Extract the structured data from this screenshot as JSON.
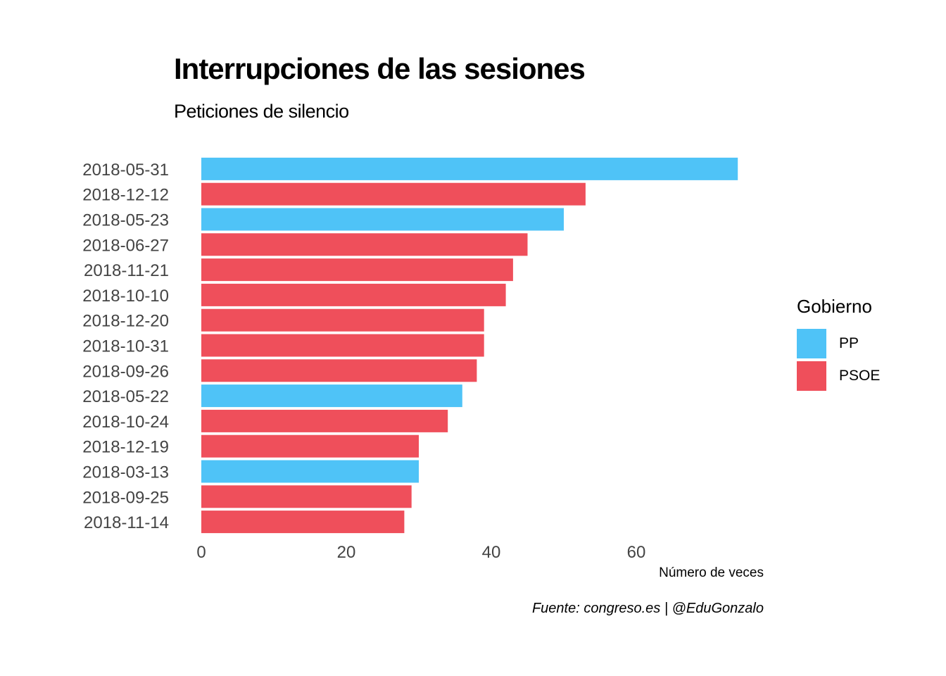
{
  "chart_data": {
    "type": "bar",
    "orientation": "horizontal",
    "title": "Interrupciones de las sesiones",
    "subtitle": "Peticiones de silencio",
    "xlabel": "Número de veces",
    "ylabel": "",
    "caption": "Fuente: congreso.es | @EduGonzalo",
    "xlim": [
      0,
      78
    ],
    "xticks": [
      0,
      20,
      40,
      60
    ],
    "grid": false,
    "legend": {
      "title": "Gobierno",
      "position": "right",
      "entries": [
        {
          "label": "PP",
          "color": "#4FC3F7"
        },
        {
          "label": "PSOE",
          "color": "#EF4F5B"
        }
      ]
    },
    "bars": [
      {
        "category": "2018-05-31",
        "value": 74,
        "group": "PP"
      },
      {
        "category": "2018-12-12",
        "value": 53,
        "group": "PSOE"
      },
      {
        "category": "2018-05-23",
        "value": 50,
        "group": "PP"
      },
      {
        "category": "2018-06-27",
        "value": 45,
        "group": "PSOE"
      },
      {
        "category": "2018-11-21",
        "value": 43,
        "group": "PSOE"
      },
      {
        "category": "2018-10-10",
        "value": 42,
        "group": "PSOE"
      },
      {
        "category": "2018-12-20",
        "value": 39,
        "group": "PSOE"
      },
      {
        "category": "2018-10-31",
        "value": 39,
        "group": "PSOE"
      },
      {
        "category": "2018-09-26",
        "value": 38,
        "group": "PSOE"
      },
      {
        "category": "2018-05-22",
        "value": 36,
        "group": "PP"
      },
      {
        "category": "2018-10-24",
        "value": 34,
        "group": "PSOE"
      },
      {
        "category": "2018-12-19",
        "value": 30,
        "group": "PSOE"
      },
      {
        "category": "2018-03-13",
        "value": 30,
        "group": "PP"
      },
      {
        "category": "2018-09-25",
        "value": 29,
        "group": "PSOE"
      },
      {
        "category": "2018-11-14",
        "value": 28,
        "group": "PSOE"
      }
    ]
  },
  "colors": {
    "PP": "#4FC3F7",
    "PSOE": "#EF4F5B"
  }
}
